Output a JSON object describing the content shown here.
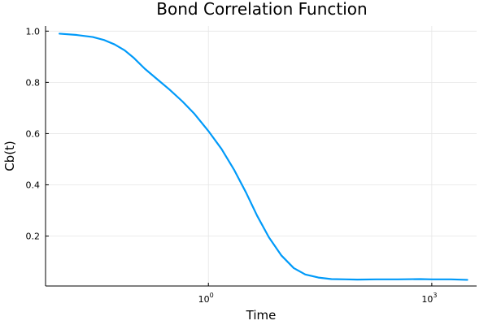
{
  "chart_data": {
    "type": "line",
    "title": "Bond Correlation Function",
    "xlabel": "Time",
    "ylabel": "Cb(t)",
    "x_scale": "log10",
    "xlim": [
      0.0065,
      4000
    ],
    "ylim": [
      0.005,
      1.02
    ],
    "x_ticks": [
      {
        "value": 1,
        "base": "10",
        "exp": "0"
      },
      {
        "value": 1000,
        "base": "10",
        "exp": "3"
      }
    ],
    "y_ticks": [
      {
        "value": 0.2,
        "label": "0.2"
      },
      {
        "value": 0.4,
        "label": "0.4"
      },
      {
        "value": 0.6,
        "label": "0.6"
      },
      {
        "value": 0.8,
        "label": "0.8"
      },
      {
        "value": 1.0,
        "label": "1.0"
      }
    ],
    "grid": true,
    "legend": "none",
    "colors": {
      "series": "#009af9"
    },
    "series": [
      {
        "x": [
          0.01,
          0.017,
          0.028,
          0.04,
          0.055,
          0.075,
          0.1,
          0.14,
          0.2,
          0.3,
          0.45,
          0.65,
          1.0,
          1.5,
          2.2,
          3.2,
          4.5,
          6.5,
          9.5,
          14,
          20,
          30,
          45,
          70,
          100,
          180,
          350,
          700,
          1000,
          1800,
          3000
        ],
        "y": [
          0.99,
          0.985,
          0.977,
          0.965,
          0.948,
          0.925,
          0.895,
          0.853,
          0.815,
          0.772,
          0.725,
          0.677,
          0.61,
          0.54,
          0.46,
          0.37,
          0.28,
          0.195,
          0.125,
          0.075,
          0.05,
          0.038,
          0.032,
          0.031,
          0.03,
          0.031,
          0.031,
          0.032,
          0.031,
          0.031,
          0.029
        ]
      }
    ]
  }
}
